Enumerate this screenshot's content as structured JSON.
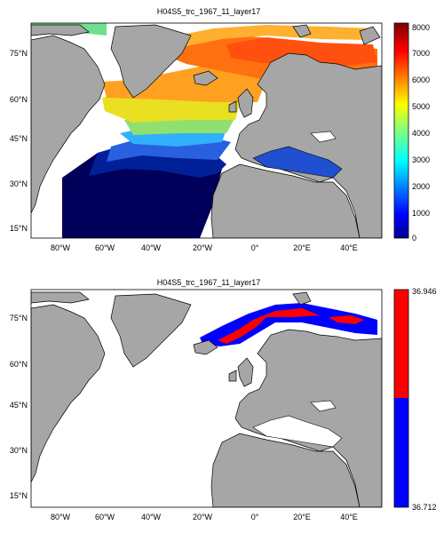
{
  "panel1": {
    "title": "H04S5_trc_1967_11_layer17",
    "colorbar_ticks": [
      "8000",
      "7000",
      "6000",
      "5000",
      "4000",
      "3000",
      "2000",
      "1000",
      "0"
    ],
    "colorbar_range": [
      0,
      8000
    ],
    "colormap": "jet"
  },
  "panel2": {
    "title": "H04S5_trc_1967_11_layer17",
    "colorbar_ticks": [
      "36.946",
      "36.712"
    ],
    "colorbar_colors": {
      "high": "#ff0000",
      "low": "#0000ff"
    }
  },
  "axes": {
    "lon_ticks": [
      "80°W",
      "60°W",
      "40°W",
      "20°W",
      "0°",
      "20°E",
      "40°E"
    ],
    "lat_ticks": [
      "75°N",
      "60°N",
      "45°N",
      "30°N",
      "15°N"
    ]
  },
  "colors": {
    "land": "#a6a6a6",
    "ocean": "#ffffff",
    "coast": "#000000"
  }
}
